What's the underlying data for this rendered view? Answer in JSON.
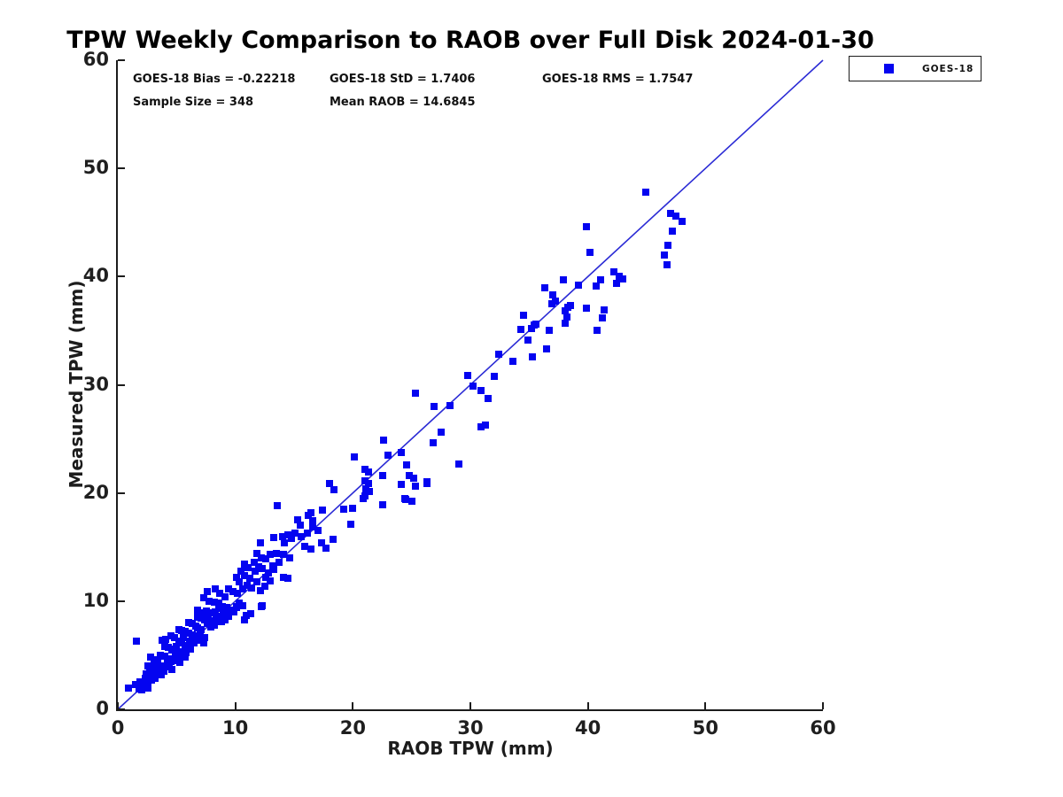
{
  "title": "TPW Weekly Comparison to RAOB over Full Disk 2024-01-30",
  "stats": {
    "bias": "GOES-18 Bias = -0.22218",
    "std": "GOES-18 StD = 1.7406",
    "rms": "GOES-18 RMS = 1.7547",
    "sample_size": "Sample Size = 348",
    "mean_raob": "Mean RAOB = 14.6845"
  },
  "legend": {
    "entries": [
      {
        "label": "GOES-18",
        "marker": "filled-square",
        "color": "#0404f0"
      }
    ]
  },
  "axes": {
    "x": {
      "label": "RAOB TPW (mm)",
      "min": 0,
      "max": 60,
      "ticks": [
        0,
        10,
        20,
        30,
        40,
        50,
        60
      ]
    },
    "y": {
      "label": "Measured TPW (mm)",
      "min": 0,
      "max": 60,
      "ticks": [
        0,
        10,
        20,
        30,
        40,
        50,
        60
      ]
    }
  },
  "colors": {
    "marker": "#0404f0",
    "reference_line": "#2b2bd5",
    "axis": "#1c1c1c",
    "background": "#ffffff"
  },
  "chart_data": {
    "type": "scatter",
    "title": "TPW Weekly Comparison to RAOB over Full Disk 2024-01-30",
    "xlabel": "RAOB TPW (mm)",
    "ylabel": "Measured TPW (mm)",
    "xlim": [
      0,
      60
    ],
    "ylim": [
      0,
      60
    ],
    "grid": false,
    "legend_position": "top-right-outside",
    "annotations": [
      "GOES-18 Bias = -0.22218",
      "GOES-18 StD = 1.7406",
      "GOES-18 RMS = 1.7547",
      "Sample Size = 348",
      "Mean RAOB = 14.6845"
    ],
    "reference_line": {
      "type": "identity",
      "from": [
        0,
        0
      ],
      "to": [
        60,
        60
      ],
      "color": "#2b2bd5"
    },
    "series": [
      {
        "name": "GOES-18",
        "marker": "square",
        "color": "#0404f0",
        "points": [
          [
            1.6,
            6.3
          ],
          [
            0.9,
            2.0
          ],
          [
            1.5,
            2.3
          ],
          [
            1.9,
            2.5
          ],
          [
            2.3,
            2.9
          ],
          [
            2.5,
            2.8
          ],
          [
            2.1,
            2.1
          ],
          [
            2.8,
            3.2
          ],
          [
            3.0,
            3.1
          ],
          [
            2.6,
            4.0
          ],
          [
            3.0,
            3.9
          ],
          [
            3.3,
            3.6
          ],
          [
            3.5,
            3.4
          ],
          [
            3.7,
            3.2
          ],
          [
            3.1,
            4.6
          ],
          [
            3.4,
            4.5
          ],
          [
            2.8,
            4.8
          ],
          [
            3.8,
            4.0
          ],
          [
            4.1,
            3.9
          ],
          [
            4.6,
            3.7
          ],
          [
            3.6,
            5.0
          ],
          [
            4.0,
            4.9
          ],
          [
            4.3,
            4.7
          ],
          [
            4.5,
            4.4
          ],
          [
            5.0,
            4.5
          ],
          [
            5.3,
            4.3
          ],
          [
            5.7,
            4.8
          ],
          [
            4.0,
            5.8
          ],
          [
            4.3,
            5.7
          ],
          [
            4.6,
            5.5
          ],
          [
            4.9,
            5.2
          ],
          [
            3.8,
            6.4
          ],
          [
            4.1,
            6.5
          ],
          [
            4.5,
            6.8
          ],
          [
            4.8,
            6.6
          ],
          [
            5.2,
            6.3
          ],
          [
            5.4,
            6.1
          ],
          [
            5.7,
            5.9
          ],
          [
            5.9,
            5.7
          ],
          [
            6.2,
            5.6
          ],
          [
            5.2,
            7.4
          ],
          [
            5.4,
            7.3
          ],
          [
            5.7,
            7.2
          ],
          [
            6.0,
            7.0
          ],
          [
            6.3,
            6.9
          ],
          [
            6.0,
            8.0
          ],
          [
            6.3,
            7.9
          ],
          [
            6.6,
            7.7
          ],
          [
            6.8,
            7.5
          ],
          [
            7.1,
            7.4
          ],
          [
            6.8,
            8.5
          ],
          [
            7.1,
            8.4
          ],
          [
            7.4,
            8.3
          ],
          [
            7.4,
            6.6
          ],
          [
            7.3,
            6.1
          ],
          [
            6.5,
            6.1
          ],
          [
            7.5,
            9.1
          ],
          [
            2.0,
            1.8
          ],
          [
            2.6,
            2.0
          ],
          [
            1.8,
            1.9
          ],
          [
            2.2,
            2.4
          ],
          [
            2.6,
            2.6
          ],
          [
            2.9,
            2.7
          ],
          [
            3.2,
            2.9
          ],
          [
            2.4,
            3.3
          ],
          [
            2.7,
            3.5
          ],
          [
            4.4,
            4.1
          ],
          [
            4.7,
            4.6
          ],
          [
            5.1,
            5.0
          ],
          [
            5.5,
            5.3
          ],
          [
            5.8,
            5.2
          ],
          [
            6.1,
            6.3
          ],
          [
            6.4,
            6.5
          ],
          [
            6.7,
            6.8
          ],
          [
            7.0,
            7.0
          ],
          [
            4.2,
            4.3
          ],
          [
            4.8,
            5.6
          ],
          [
            5.0,
            5.8
          ],
          [
            5.6,
            6.6
          ],
          [
            6.9,
            6.4
          ],
          [
            3.9,
            3.5
          ],
          [
            3.3,
            4.1
          ],
          [
            7.7,
            8.7
          ],
          [
            8.0,
            8.9
          ],
          [
            8.3,
            9.0
          ],
          [
            7.8,
            8.2
          ],
          [
            8.1,
            8.0
          ],
          [
            8.4,
            8.4
          ],
          [
            8.7,
            8.6
          ],
          [
            9.0,
            8.9
          ],
          [
            8.6,
            9.3
          ],
          [
            9.2,
            9.2
          ],
          [
            7.6,
            7.9
          ],
          [
            7.9,
            7.6
          ],
          [
            8.2,
            7.8
          ],
          [
            8.8,
            8.1
          ],
          [
            9.1,
            8.3
          ],
          [
            9.4,
            8.6
          ],
          [
            9.7,
            9.1
          ],
          [
            10.3,
            9.8
          ],
          [
            10.1,
            9.4
          ],
          [
            9.9,
            9.0
          ],
          [
            10.8,
            8.3
          ],
          [
            12.2,
            9.5
          ],
          [
            6.8,
            9.2
          ],
          [
            7.2,
            8.9
          ],
          [
            7.6,
            8.8
          ],
          [
            7.3,
            10.3
          ],
          [
            7.6,
            10.9
          ],
          [
            7.8,
            10.0
          ],
          [
            8.2,
            9.9
          ],
          [
            8.6,
            9.8
          ],
          [
            8.9,
            9.5
          ],
          [
            9.3,
            9.4
          ],
          [
            9.7,
            9.2
          ],
          [
            10.1,
            9.5
          ],
          [
            10.6,
            9.6
          ],
          [
            10.9,
            8.7
          ],
          [
            11.3,
            8.8
          ],
          [
            12.3,
            9.6
          ],
          [
            8.3,
            11.1
          ],
          [
            8.7,
            10.7
          ],
          [
            9.1,
            10.4
          ],
          [
            9.4,
            11.1
          ],
          [
            9.8,
            10.9
          ],
          [
            10.2,
            10.7
          ],
          [
            10.6,
            11.1
          ],
          [
            10.1,
            12.2
          ],
          [
            10.3,
            11.8
          ],
          [
            10.5,
            12.8
          ],
          [
            10.8,
            12.4
          ],
          [
            11.2,
            12.1
          ],
          [
            11.6,
            13.6
          ],
          [
            11.7,
            12.8
          ],
          [
            11.8,
            14.4
          ],
          [
            12.0,
            13.2
          ],
          [
            12.1,
            15.4
          ],
          [
            12.2,
            14.0
          ],
          [
            12.3,
            13.0
          ],
          [
            12.6,
            13.9
          ],
          [
            12.6,
            12.2
          ],
          [
            13.0,
            14.3
          ],
          [
            13.0,
            11.9
          ],
          [
            13.3,
            12.9
          ],
          [
            13.3,
            15.9
          ],
          [
            13.5,
            14.4
          ],
          [
            14.0,
            16.0
          ],
          [
            14.1,
            14.3
          ],
          [
            14.1,
            12.2
          ],
          [
            14.5,
            16.1
          ],
          [
            14.5,
            12.1
          ],
          [
            14.6,
            14.0
          ],
          [
            14.8,
            15.8
          ],
          [
            11.0,
            11.5
          ],
          [
            11.4,
            11.2
          ],
          [
            11.8,
            11.8
          ],
          [
            12.1,
            11.0
          ],
          [
            12.5,
            11.4
          ],
          [
            13.2,
            13.3
          ],
          [
            13.7,
            13.6
          ],
          [
            12.8,
            12.6
          ],
          [
            11.1,
            13.1
          ],
          [
            10.8,
            13.4
          ],
          [
            13.6,
            18.8
          ],
          [
            15.3,
            17.5
          ],
          [
            16.2,
            17.9
          ],
          [
            16.6,
            17.4
          ],
          [
            17.4,
            18.4
          ],
          [
            16.4,
            18.2
          ],
          [
            19.2,
            18.5
          ],
          [
            20.9,
            19.5
          ],
          [
            19.8,
            17.1
          ],
          [
            20.0,
            18.6
          ],
          [
            15.1,
            16.3
          ],
          [
            15.6,
            16.0
          ],
          [
            16.1,
            16.3
          ],
          [
            16.6,
            16.9
          ],
          [
            17.0,
            16.5
          ],
          [
            15.9,
            15.1
          ],
          [
            16.4,
            14.8
          ],
          [
            17.3,
            15.4
          ],
          [
            17.7,
            14.9
          ],
          [
            18.3,
            15.7
          ],
          [
            14.2,
            15.4
          ],
          [
            15.5,
            17.0
          ],
          [
            18.0,
            20.9
          ],
          [
            18.4,
            20.3
          ],
          [
            22.5,
            18.9
          ],
          [
            24.4,
            19.5
          ],
          [
            24.5,
            19.4
          ],
          [
            25.0,
            19.2
          ],
          [
            26.3,
            20.9
          ],
          [
            21.0,
            22.2
          ],
          [
            21.3,
            21.9
          ],
          [
            21.0,
            21.1
          ],
          [
            21.3,
            20.9
          ],
          [
            21.1,
            20.4
          ],
          [
            21.4,
            20.1
          ],
          [
            21.0,
            19.7
          ],
          [
            22.5,
            21.6
          ],
          [
            23.0,
            23.5
          ],
          [
            24.1,
            23.7
          ],
          [
            22.6,
            24.9
          ],
          [
            24.6,
            22.6
          ],
          [
            24.8,
            21.6
          ],
          [
            25.2,
            21.4
          ],
          [
            24.1,
            20.8
          ],
          [
            25.3,
            20.6
          ],
          [
            20.1,
            23.3
          ],
          [
            25.3,
            29.2
          ],
          [
            26.8,
            24.6
          ],
          [
            26.9,
            28.0
          ],
          [
            27.5,
            25.6
          ],
          [
            28.3,
            28.1
          ],
          [
            29.0,
            22.7
          ],
          [
            26.3,
            21.0
          ],
          [
            29.8,
            30.9
          ],
          [
            32.0,
            30.8
          ],
          [
            30.2,
            29.9
          ],
          [
            30.9,
            29.5
          ],
          [
            31.5,
            28.7
          ],
          [
            30.9,
            26.1
          ],
          [
            31.3,
            26.3
          ],
          [
            40.2,
            42.2
          ],
          [
            42.2,
            40.4
          ],
          [
            42.7,
            40.0
          ],
          [
            43.0,
            39.8
          ],
          [
            42.4,
            39.4
          ],
          [
            41.1,
            39.7
          ],
          [
            40.7,
            39.1
          ],
          [
            37.9,
            39.7
          ],
          [
            39.2,
            39.2
          ],
          [
            36.3,
            39.0
          ],
          [
            37.0,
            38.3
          ],
          [
            37.2,
            37.7
          ],
          [
            36.9,
            37.5
          ],
          [
            38.3,
            37.2
          ],
          [
            38.5,
            37.3
          ],
          [
            38.1,
            36.8
          ],
          [
            38.2,
            36.3
          ],
          [
            38.1,
            35.7
          ],
          [
            39.9,
            37.1
          ],
          [
            41.4,
            36.9
          ],
          [
            41.2,
            36.2
          ],
          [
            34.5,
            36.4
          ],
          [
            34.3,
            35.1
          ],
          [
            35.4,
            35.5
          ],
          [
            35.6,
            35.6
          ],
          [
            35.2,
            35.2
          ],
          [
            36.7,
            35.0
          ],
          [
            40.8,
            35.0
          ],
          [
            34.9,
            34.1
          ],
          [
            36.5,
            33.3
          ],
          [
            32.4,
            32.8
          ],
          [
            33.6,
            32.2
          ],
          [
            35.3,
            32.6
          ],
          [
            44.9,
            47.8
          ],
          [
            47.0,
            45.8
          ],
          [
            47.5,
            45.6
          ],
          [
            48.0,
            45.1
          ],
          [
            47.2,
            44.2
          ],
          [
            39.9,
            44.6
          ],
          [
            46.8,
            42.9
          ],
          [
            46.5,
            42.0
          ],
          [
            46.7,
            41.1
          ]
        ]
      }
    ]
  }
}
